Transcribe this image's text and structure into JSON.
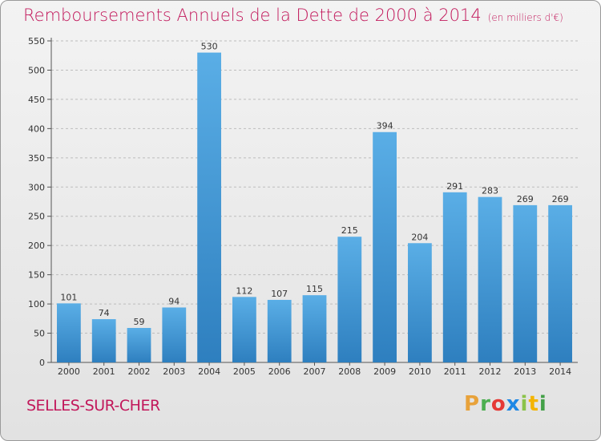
{
  "header": {
    "title": "Remboursements Annuels de la Dette de 2000 à 2014",
    "unit_note": "(en milliers d'€)"
  },
  "footer": {
    "commune": "SELLES-SUR-CHER",
    "logo_letters": [
      "P",
      "r",
      "o",
      "x",
      "i",
      "t",
      "i"
    ],
    "logo_colors": [
      "#e8a23a",
      "#4caf50",
      "#e53935",
      "#1e88e5",
      "#8bc34a",
      "#f4b400",
      "#43a047"
    ]
  },
  "colors": {
    "bar_top": "#5aaee6",
    "bar_bottom": "#2e7fbf",
    "title": "#c2185b",
    "grid": "#bdbdbd"
  },
  "chart_data": {
    "type": "bar",
    "title": "Remboursements Annuels de la Dette de 2000 à 2014",
    "xlabel": "",
    "ylabel": "",
    "categories": [
      "2000",
      "2001",
      "2002",
      "2003",
      "2004",
      "2005",
      "2006",
      "2007",
      "2008",
      "2009",
      "2010",
      "2011",
      "2012",
      "2013",
      "2014"
    ],
    "values": [
      101,
      74,
      59,
      94,
      530,
      112,
      107,
      115,
      215,
      394,
      204,
      291,
      283,
      269,
      269
    ],
    "ylim": [
      0,
      550
    ],
    "yticks": [
      0,
      50,
      100,
      150,
      200,
      250,
      300,
      350,
      400,
      450,
      500,
      550
    ],
    "grid": true
  }
}
